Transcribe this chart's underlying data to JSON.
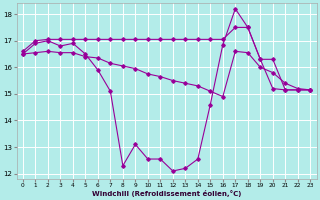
{
  "xlabel": "Windchill (Refroidissement éolien,°C)",
  "background_color": "#b3ece9",
  "grid_color": "#ffffff",
  "line_color": "#990099",
  "xlim": [
    -0.5,
    23.5
  ],
  "ylim": [
    11.8,
    18.4
  ],
  "yticks": [
    12,
    13,
    14,
    15,
    16,
    17,
    18
  ],
  "xticks": [
    0,
    1,
    2,
    3,
    4,
    5,
    6,
    7,
    8,
    9,
    10,
    11,
    12,
    13,
    14,
    15,
    16,
    17,
    18,
    19,
    20,
    21,
    22,
    23
  ],
  "series": [
    {
      "x": [
        0,
        1,
        2,
        3,
        4,
        5,
        6,
        7,
        8,
        9,
        10,
        11,
        12,
        13,
        14,
        15,
        16,
        17,
        18,
        19,
        20,
        21,
        22,
        23
      ],
      "y": [
        16.5,
        16.9,
        17.0,
        16.8,
        16.9,
        16.5,
        15.9,
        15.1,
        12.3,
        13.1,
        12.55,
        12.55,
        12.1,
        12.2,
        12.55,
        14.6,
        16.85,
        18.2,
        17.5,
        16.3,
        15.2,
        15.15,
        15.15,
        15.15
      ]
    },
    {
      "x": [
        0,
        1,
        2,
        3,
        4,
        5,
        6,
        7,
        8,
        9,
        10,
        11,
        12,
        13,
        14,
        15,
        16,
        17,
        18,
        19,
        20,
        21,
        22,
        23
      ],
      "y": [
        16.6,
        17.0,
        17.05,
        17.05,
        17.05,
        17.05,
        17.05,
        17.05,
        17.05,
        17.05,
        17.05,
        17.05,
        17.05,
        17.05,
        17.05,
        17.05,
        17.05,
        17.5,
        17.5,
        16.3,
        16.3,
        15.15,
        15.15,
        15.15
      ]
    },
    {
      "x": [
        0,
        1,
        2,
        3,
        4,
        5,
        6,
        7,
        8,
        9,
        10,
        11,
        12,
        13,
        14,
        15,
        16,
        17,
        18,
        19,
        20,
        21,
        22,
        23
      ],
      "y": [
        16.5,
        16.55,
        16.6,
        16.55,
        16.55,
        16.4,
        16.35,
        16.15,
        16.05,
        15.95,
        15.75,
        15.65,
        15.5,
        15.4,
        15.3,
        15.1,
        14.9,
        16.6,
        16.55,
        16.0,
        15.8,
        15.4,
        15.2,
        15.15
      ]
    }
  ]
}
